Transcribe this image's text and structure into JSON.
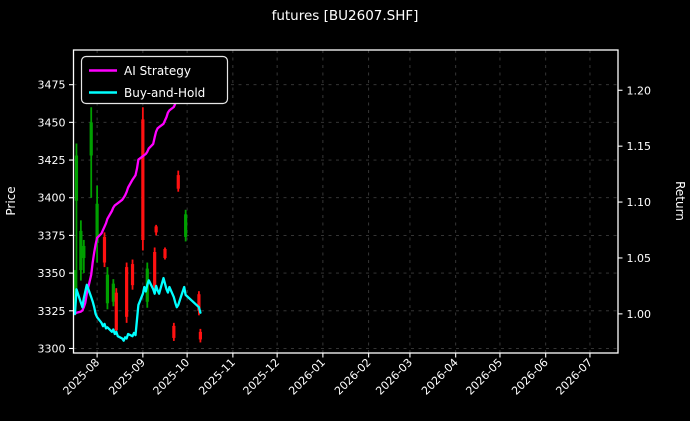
{
  "title": "futures [BU2607.SHF]",
  "colors": {
    "background": "#000000",
    "foreground": "#ffffff",
    "ai_strategy": "#ff00ff",
    "buy_and_hold": "#00ffff",
    "candle_up": "#00a000",
    "candle_down": "#ff1111"
  },
  "legend": [
    {
      "label": "AI Strategy",
      "color": "#ff00ff"
    },
    {
      "label": "Buy-and-Hold",
      "color": "#00ffff"
    }
  ],
  "axes": {
    "y_left": {
      "label": "Price",
      "ticks": [
        "3300",
        "3325",
        "3350",
        "3375",
        "3400",
        "3425",
        "3450",
        "3475"
      ],
      "tick_values": [
        3300,
        3325,
        3350,
        3375,
        3400,
        3425,
        3450,
        3475
      ]
    },
    "y_right": {
      "label": "Return",
      "ticks": [
        "1.00",
        "1.05",
        "1.10",
        "1.15",
        "1.20"
      ],
      "tick_values": [
        1.0,
        1.05,
        1.1,
        1.15,
        1.2
      ]
    },
    "x": {
      "ticks": [
        "2025-08",
        "2025-09",
        "2025-10",
        "2025-11",
        "2025-12",
        "2026-01",
        "2026-02",
        "2026-03",
        "2026-04",
        "2026-05",
        "2026-06",
        "2026-07"
      ]
    }
  },
  "chart_data": [
    {
      "type": "line",
      "title": "futures [BU2607.SHF]",
      "ylabel": "Return",
      "axis": "return",
      "ylim": [
        0.965,
        1.236
      ],
      "x_range": [
        "2025-07-16",
        "2026-07-20"
      ],
      "legend_position": "upper left",
      "grid": true,
      "dates": [
        "2025-07-17",
        "2025-07-18",
        "2025-07-21",
        "2025-07-22",
        "2025-07-23",
        "2025-07-24",
        "2025-07-25",
        "2025-07-28",
        "2025-07-29",
        "2025-07-30",
        "2025-07-31",
        "2025-08-01",
        "2025-08-04",
        "2025-08-05",
        "2025-08-06",
        "2025-08-07",
        "2025-08-08",
        "2025-08-11",
        "2025-08-12",
        "2025-08-13",
        "2025-08-14",
        "2025-08-15",
        "2025-08-18",
        "2025-08-19",
        "2025-08-20",
        "2025-08-21",
        "2025-08-22",
        "2025-08-25",
        "2025-08-26",
        "2025-08-27",
        "2025-08-28",
        "2025-08-29",
        "2025-09-01",
        "2025-09-02",
        "2025-09-03",
        "2025-09-04",
        "2025-09-05",
        "2025-09-08",
        "2025-09-09",
        "2025-09-10",
        "2025-09-11",
        "2025-09-12",
        "2025-09-15",
        "2025-09-16",
        "2025-09-17",
        "2025-09-18",
        "2025-09-19",
        "2025-09-22",
        "2025-09-23",
        "2025-09-24",
        "2025-09-25",
        "2025-09-26",
        "2025-09-29",
        "2025-09-30",
        "2025-10-09",
        "2025-10-10"
      ],
      "series": [
        {
          "name": "AI Strategy",
          "color": "#ff00ff",
          "values": [
            1.0,
            1.001,
            1.002,
            1.003,
            1.006,
            1.01,
            1.018,
            1.035,
            1.046,
            1.055,
            1.062,
            1.068,
            1.072,
            1.075,
            1.078,
            1.081,
            1.085,
            1.092,
            1.095,
            1.097,
            1.098,
            1.099,
            1.102,
            1.104,
            1.106,
            1.109,
            1.113,
            1.12,
            1.122,
            1.124,
            1.13,
            1.138,
            1.141,
            1.142,
            1.143,
            1.145,
            1.148,
            1.152,
            1.158,
            1.163,
            1.166,
            1.167,
            1.17,
            1.173,
            1.176,
            1.18,
            1.182,
            1.185,
            1.188,
            1.191,
            1.194,
            1.196,
            1.198,
            1.2,
            1.203,
            1.205
          ]
        },
        {
          "name": "Buy-and-Hold",
          "color": "#00ffff",
          "values": [
            1.0,
            1.022,
            1.01,
            1.006,
            1.014,
            1.02,
            1.026,
            1.015,
            1.011,
            1.006,
            1.0,
            0.997,
            0.992,
            0.989,
            0.991,
            0.987,
            0.988,
            0.984,
            0.986,
            0.982,
            0.984,
            0.98,
            0.978,
            0.976,
            0.979,
            0.978,
            0.982,
            0.98,
            0.983,
            0.981,
            0.995,
            1.008,
            1.018,
            1.024,
            1.02,
            1.026,
            1.03,
            1.022,
            1.018,
            1.025,
            1.021,
            1.018,
            1.032,
            1.027,
            1.022,
            1.019,
            1.024,
            1.015,
            1.01,
            1.006,
            1.008,
            1.012,
            1.024,
            1.017,
            1.006,
            1.001
          ]
        }
      ]
    },
    {
      "type": "candlestick",
      "axis": "price",
      "ylabel": "Price",
      "ylim": [
        3297,
        3498
      ],
      "up_color": "#00a000",
      "down_color": "#ff1111",
      "columns": [
        "date",
        "open",
        "high",
        "low",
        "close"
      ],
      "candles": [
        [
          "2025-07-17",
          3330,
          3352,
          3322,
          3345
        ],
        [
          "2025-07-18",
          3398,
          3436,
          3340,
          3428
        ],
        [
          "2025-07-21",
          3352,
          3385,
          3345,
          3378
        ],
        [
          "2025-07-23",
          3360,
          3372,
          3350,
          3368
        ],
        [
          "2025-07-28",
          3428,
          3460,
          3400,
          3450
        ],
        [
          "2025-08-01",
          3370,
          3408,
          3357,
          3396
        ],
        [
          "2025-08-06",
          3374,
          3377,
          3354,
          3357
        ],
        [
          "2025-08-08",
          3330,
          3354,
          3326,
          3349
        ],
        [
          "2025-08-12",
          3331,
          3346,
          3328,
          3343
        ],
        [
          "2025-08-14",
          3337,
          3340,
          3309,
          3312
        ],
        [
          "2025-08-21",
          3354,
          3357,
          3317,
          3321
        ],
        [
          "2025-08-25",
          3356,
          3359,
          3339,
          3342
        ],
        [
          "2025-09-01",
          3452,
          3460,
          3365,
          3372
        ],
        [
          "2025-09-04",
          3331,
          3357,
          3327,
          3353
        ],
        [
          "2025-09-09",
          3364,
          3367,
          3337,
          3341
        ],
        [
          "2025-09-10",
          3381,
          3382,
          3375,
          3377
        ],
        [
          "2025-09-16",
          3366,
          3367,
          3359,
          3360
        ],
        [
          "2025-09-22",
          3315,
          3317,
          3305,
          3307
        ],
        [
          "2025-09-25",
          3415,
          3418,
          3404,
          3406
        ],
        [
          "2025-09-30",
          3374,
          3392,
          3371,
          3389
        ],
        [
          "2025-10-09",
          3336,
          3338,
          3322,
          3325
        ],
        [
          "2025-10-10",
          3311,
          3313,
          3304,
          3306
        ]
      ]
    }
  ]
}
